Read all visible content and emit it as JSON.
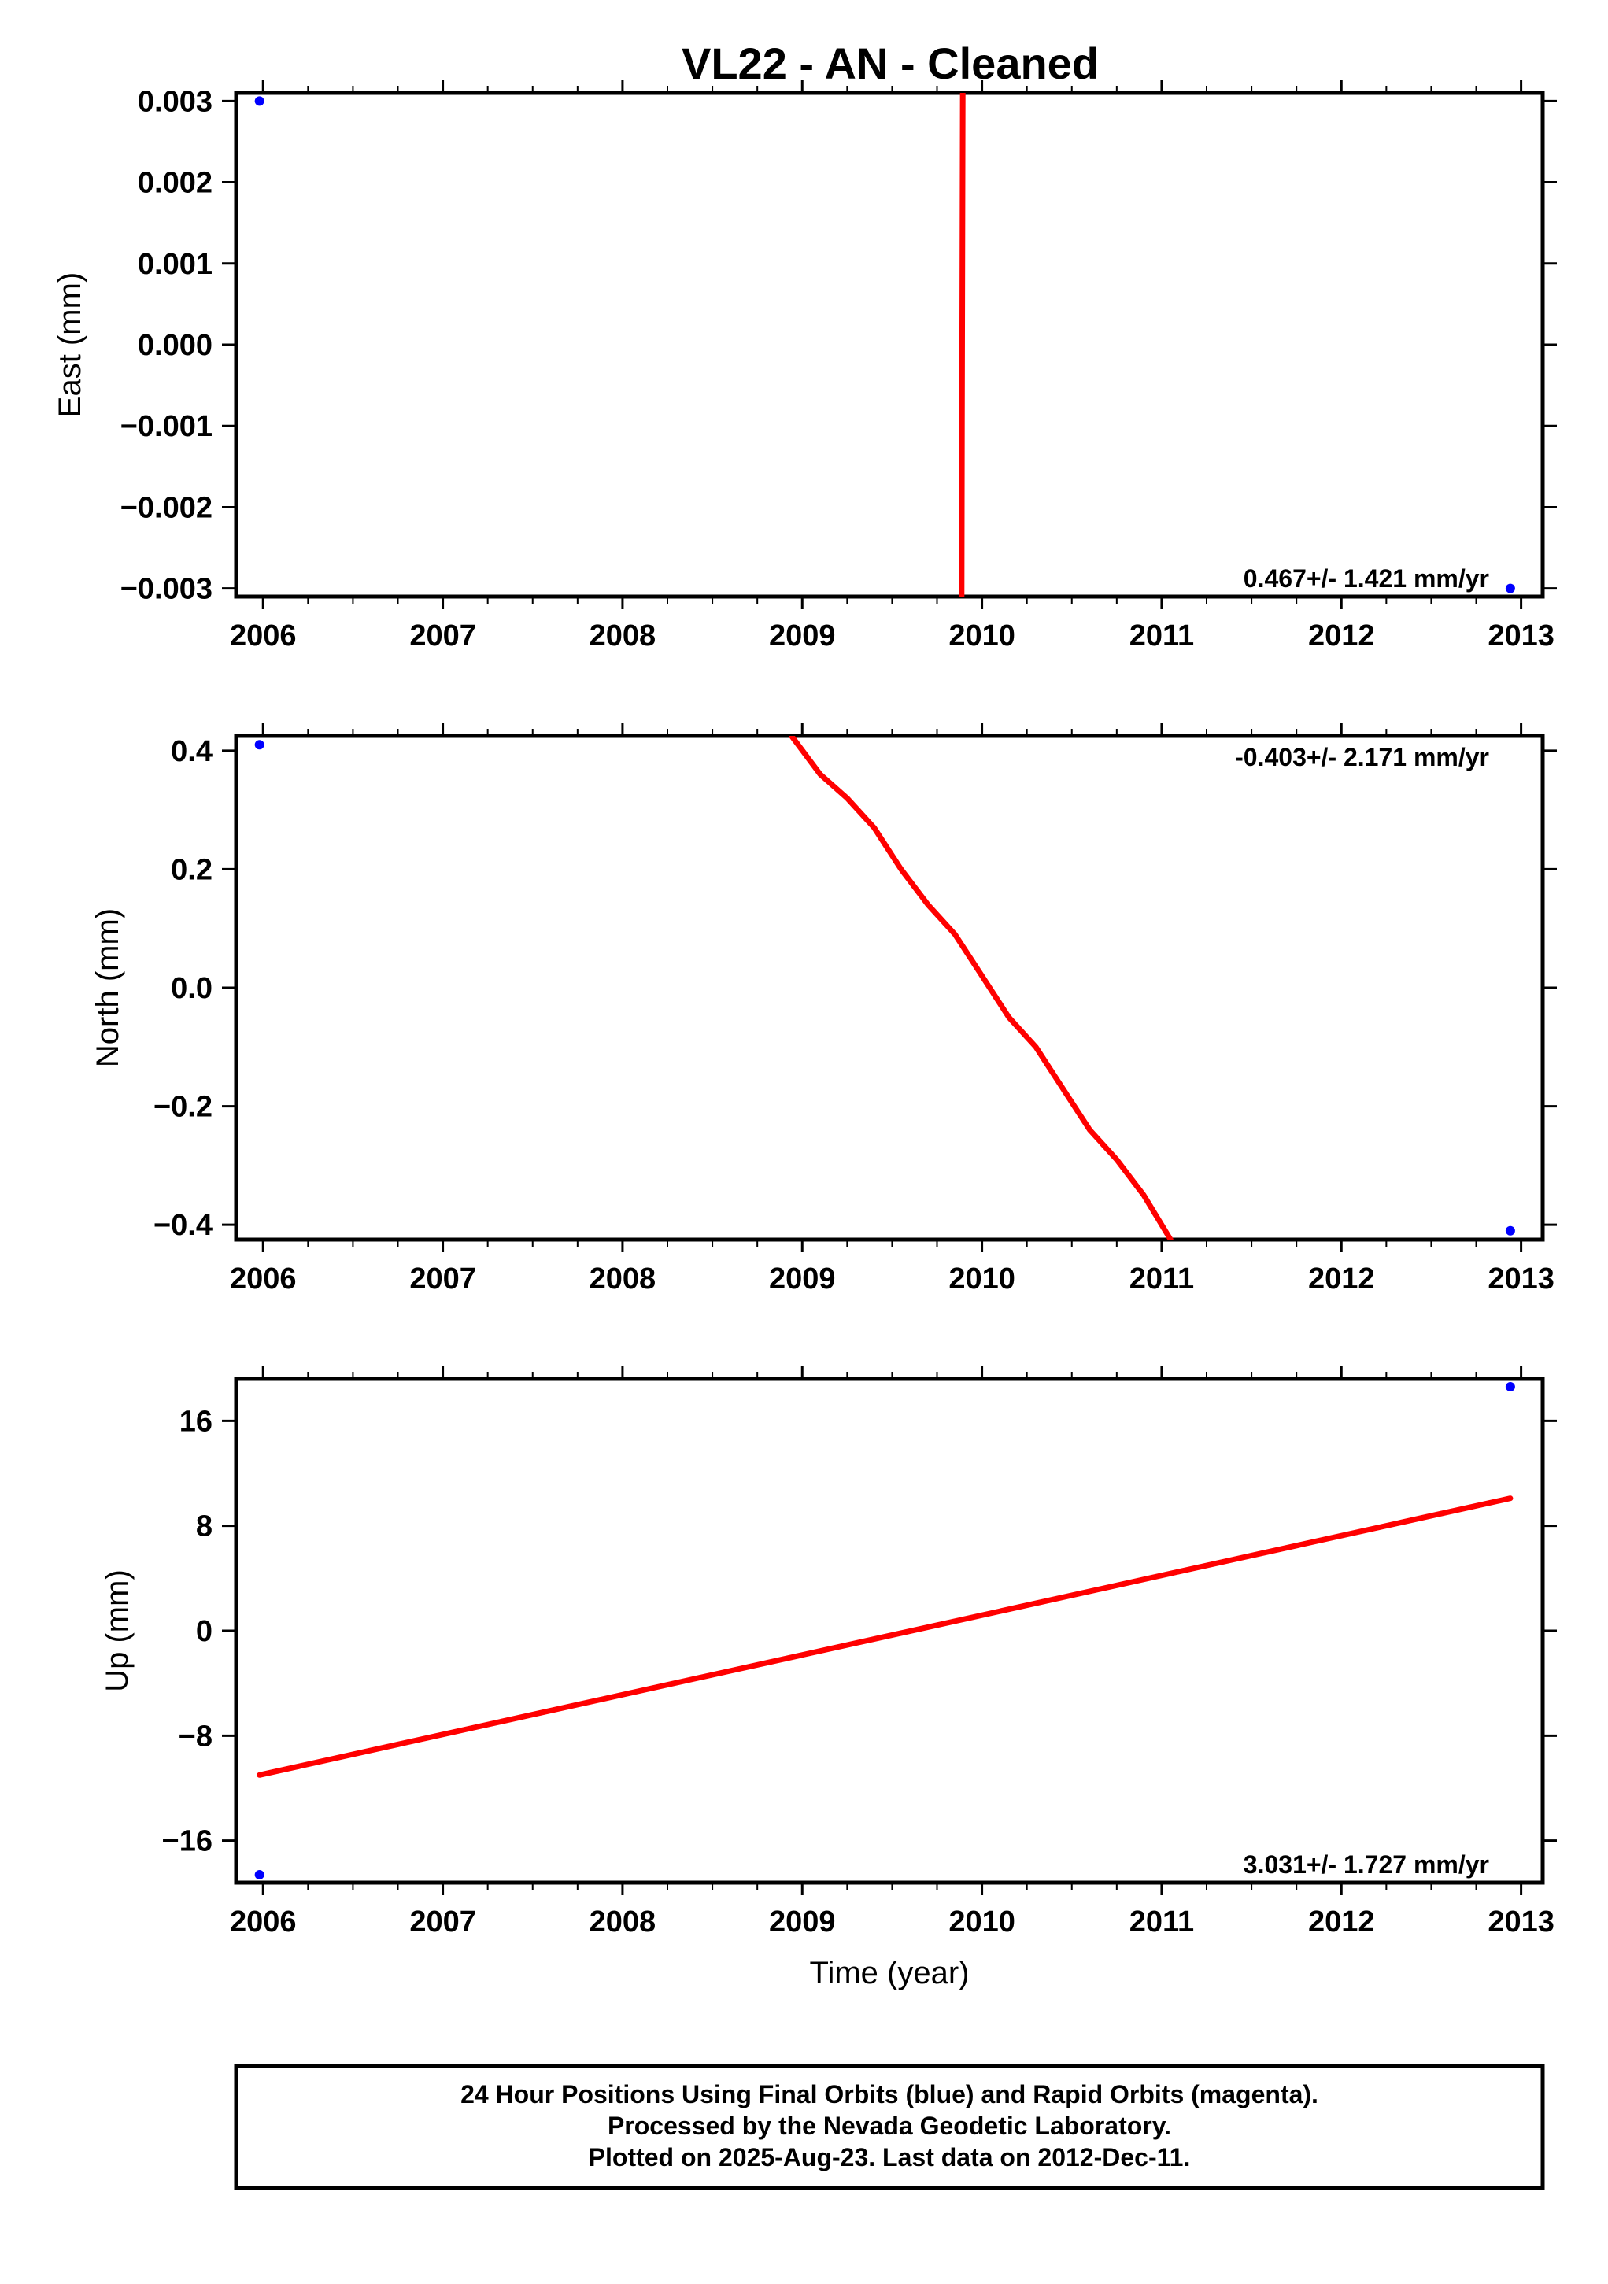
{
  "title": "VL22  - AN - Cleaned",
  "caption": {
    "lines": [
      "24 Hour Positions Using Final Orbits (blue) and Rapid Orbits (magenta).",
      "Processed by the Nevada Geodetic Laboratory.",
      "Plotted on 2025-Aug-23. Last data on 2012-Dec-11."
    ]
  },
  "colors": {
    "final_orbits": "#0000ff",
    "fit_line": "#ff0000",
    "frame": "#000000"
  },
  "chart_data": [
    {
      "type": "scatter",
      "ylabel": "East (mm)",
      "xlabel": "",
      "xlim": [
        2005.85,
        2013.12
      ],
      "ylim": [
        -0.0031,
        0.0031
      ],
      "x_ticks": [
        "2006",
        "2007",
        "2008",
        "2009",
        "2010",
        "2011",
        "2012",
        "2013"
      ],
      "y_ticks": [
        "0.003",
        "0.002",
        "0.001",
        "0.000",
        "−0.001",
        "−0.002",
        "−0.003"
      ],
      "y_tick_values": [
        0.003,
        0.002,
        0.001,
        0.0,
        -0.001,
        -0.002,
        -0.003
      ],
      "rate_label": "0.467+/- 1.421 mm/yr",
      "rate_position": "bottom-right",
      "points": {
        "x": [
          2005.98,
          2012.94
        ],
        "y": [
          0.003,
          -0.003
        ]
      },
      "fit_line": {
        "x": [
          2009.887,
          2009.889,
          2009.891,
          2009.893
        ],
        "y": [
          -0.0031,
          -0.001,
          0.001,
          0.0031
        ]
      }
    },
    {
      "type": "scatter",
      "ylabel": "North (mm)",
      "xlabel": "",
      "xlim": [
        2005.85,
        2013.12
      ],
      "ylim": [
        -0.425,
        0.425
      ],
      "x_ticks": [
        "2006",
        "2007",
        "2008",
        "2009",
        "2010",
        "2011",
        "2012",
        "2013"
      ],
      "y_ticks": [
        "0.4",
        "0.2",
        "0.0",
        "−0.2",
        "−0.4"
      ],
      "y_tick_values": [
        0.4,
        0.2,
        0.0,
        -0.2,
        -0.4
      ],
      "rate_label": "-0.403+/- 2.171 mm/yr",
      "rate_position": "top-right",
      "points": {
        "x": [
          2005.98,
          2012.94
        ],
        "y": [
          0.41,
          -0.41
        ]
      },
      "fit_line": {
        "x": [
          2008.94,
          2009.1,
          2009.25,
          2009.4,
          2009.55,
          2009.7,
          2009.85,
          2010.0,
          2010.15,
          2010.3,
          2010.45,
          2010.6,
          2010.75,
          2010.9,
          2011.05
        ],
        "y": [
          0.425,
          0.36,
          0.32,
          0.27,
          0.2,
          0.14,
          0.09,
          0.02,
          -0.05,
          -0.1,
          -0.17,
          -0.24,
          -0.29,
          -0.35,
          -0.425
        ]
      }
    },
    {
      "type": "scatter",
      "ylabel": "Up (mm)",
      "xlabel": "Time (year)",
      "xlim": [
        2005.85,
        2013.12
      ],
      "ylim": [
        -19.2,
        19.2
      ],
      "x_ticks": [
        "2006",
        "2007",
        "2008",
        "2009",
        "2010",
        "2011",
        "2012",
        "2013"
      ],
      "y_ticks": [
        "16",
        "8",
        "0",
        "−8",
        "−16"
      ],
      "y_tick_values": [
        16,
        8,
        0,
        -8,
        -16
      ],
      "rate_label": "3.031+/- 1.727 mm/yr",
      "rate_position": "bottom-right",
      "points": {
        "x": [
          2005.98,
          2012.94
        ],
        "y": [
          -18.6,
          18.6
        ]
      },
      "fit_line": {
        "x": [
          2005.98,
          2012.94
        ],
        "y": [
          -11.0,
          10.1
        ]
      }
    }
  ]
}
